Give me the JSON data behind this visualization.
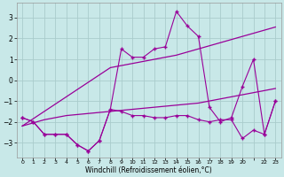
{
  "title": "",
  "xlabel": "Windchill (Refroidissement éolien,°C)",
  "x_hours": [
    0,
    1,
    2,
    3,
    4,
    5,
    6,
    7,
    8,
    9,
    10,
    11,
    12,
    13,
    14,
    15,
    16,
    17,
    18,
    19,
    20,
    21,
    22,
    23
  ],
  "y_spiky": [
    -1.8,
    -2.0,
    -2.6,
    -2.6,
    -2.6,
    -3.1,
    -3.4,
    -2.9,
    -1.4,
    1.5,
    1.1,
    1.1,
    1.5,
    1.6,
    3.3,
    2.6,
    2.1,
    -1.3,
    -2.0,
    -1.8,
    -0.3,
    1.0,
    -2.6,
    -1.0
  ],
  "y_flat": [
    -1.8,
    -2.0,
    -2.6,
    -2.6,
    -2.6,
    -3.1,
    -3.4,
    -2.9,
    -1.4,
    -1.5,
    -1.7,
    -1.7,
    -1.8,
    -1.8,
    -1.7,
    -1.7,
    -1.9,
    -2.0,
    -1.9,
    -1.9,
    -2.8,
    -2.4,
    -2.6,
    -1.0
  ],
  "y_regr_upper": [
    -2.2,
    -1.85,
    -1.5,
    -1.15,
    -0.8,
    -0.45,
    -0.1,
    0.25,
    0.6,
    0.7,
    0.8,
    0.9,
    1.0,
    1.1,
    1.2,
    1.35,
    1.5,
    1.65,
    1.8,
    1.95,
    2.1,
    2.25,
    2.4,
    2.55
  ],
  "y_regr_lower": [
    -2.2,
    -2.05,
    -1.9,
    -1.8,
    -1.7,
    -1.65,
    -1.6,
    -1.55,
    -1.5,
    -1.45,
    -1.4,
    -1.35,
    -1.3,
    -1.25,
    -1.2,
    -1.15,
    -1.1,
    -1.0,
    -0.9,
    -0.8,
    -0.7,
    -0.6,
    -0.5,
    -0.4
  ],
  "line_color": "#990099",
  "bg_color": "#c8e8e8",
  "grid_color": "#aacccc",
  "ylim": [
    -3.7,
    3.7
  ],
  "xlim": [
    -0.5,
    23.5
  ],
  "yticks": [
    -3,
    -2,
    -1,
    0,
    1,
    2,
    3
  ],
  "xticks": [
    0,
    1,
    2,
    3,
    4,
    5,
    6,
    7,
    8,
    9,
    10,
    11,
    12,
    13,
    14,
    15,
    16,
    17,
    18,
    19,
    20,
    21,
    22,
    23
  ],
  "xtick_labels": [
    "0",
    "1",
    "2",
    "3",
    "4",
    "5",
    "6",
    "7",
    "8",
    "9",
    "10",
    "11",
    "12",
    "13",
    "14",
    "15",
    "16",
    "17",
    "18",
    "19",
    "20",
    "",
    "22",
    "23"
  ]
}
